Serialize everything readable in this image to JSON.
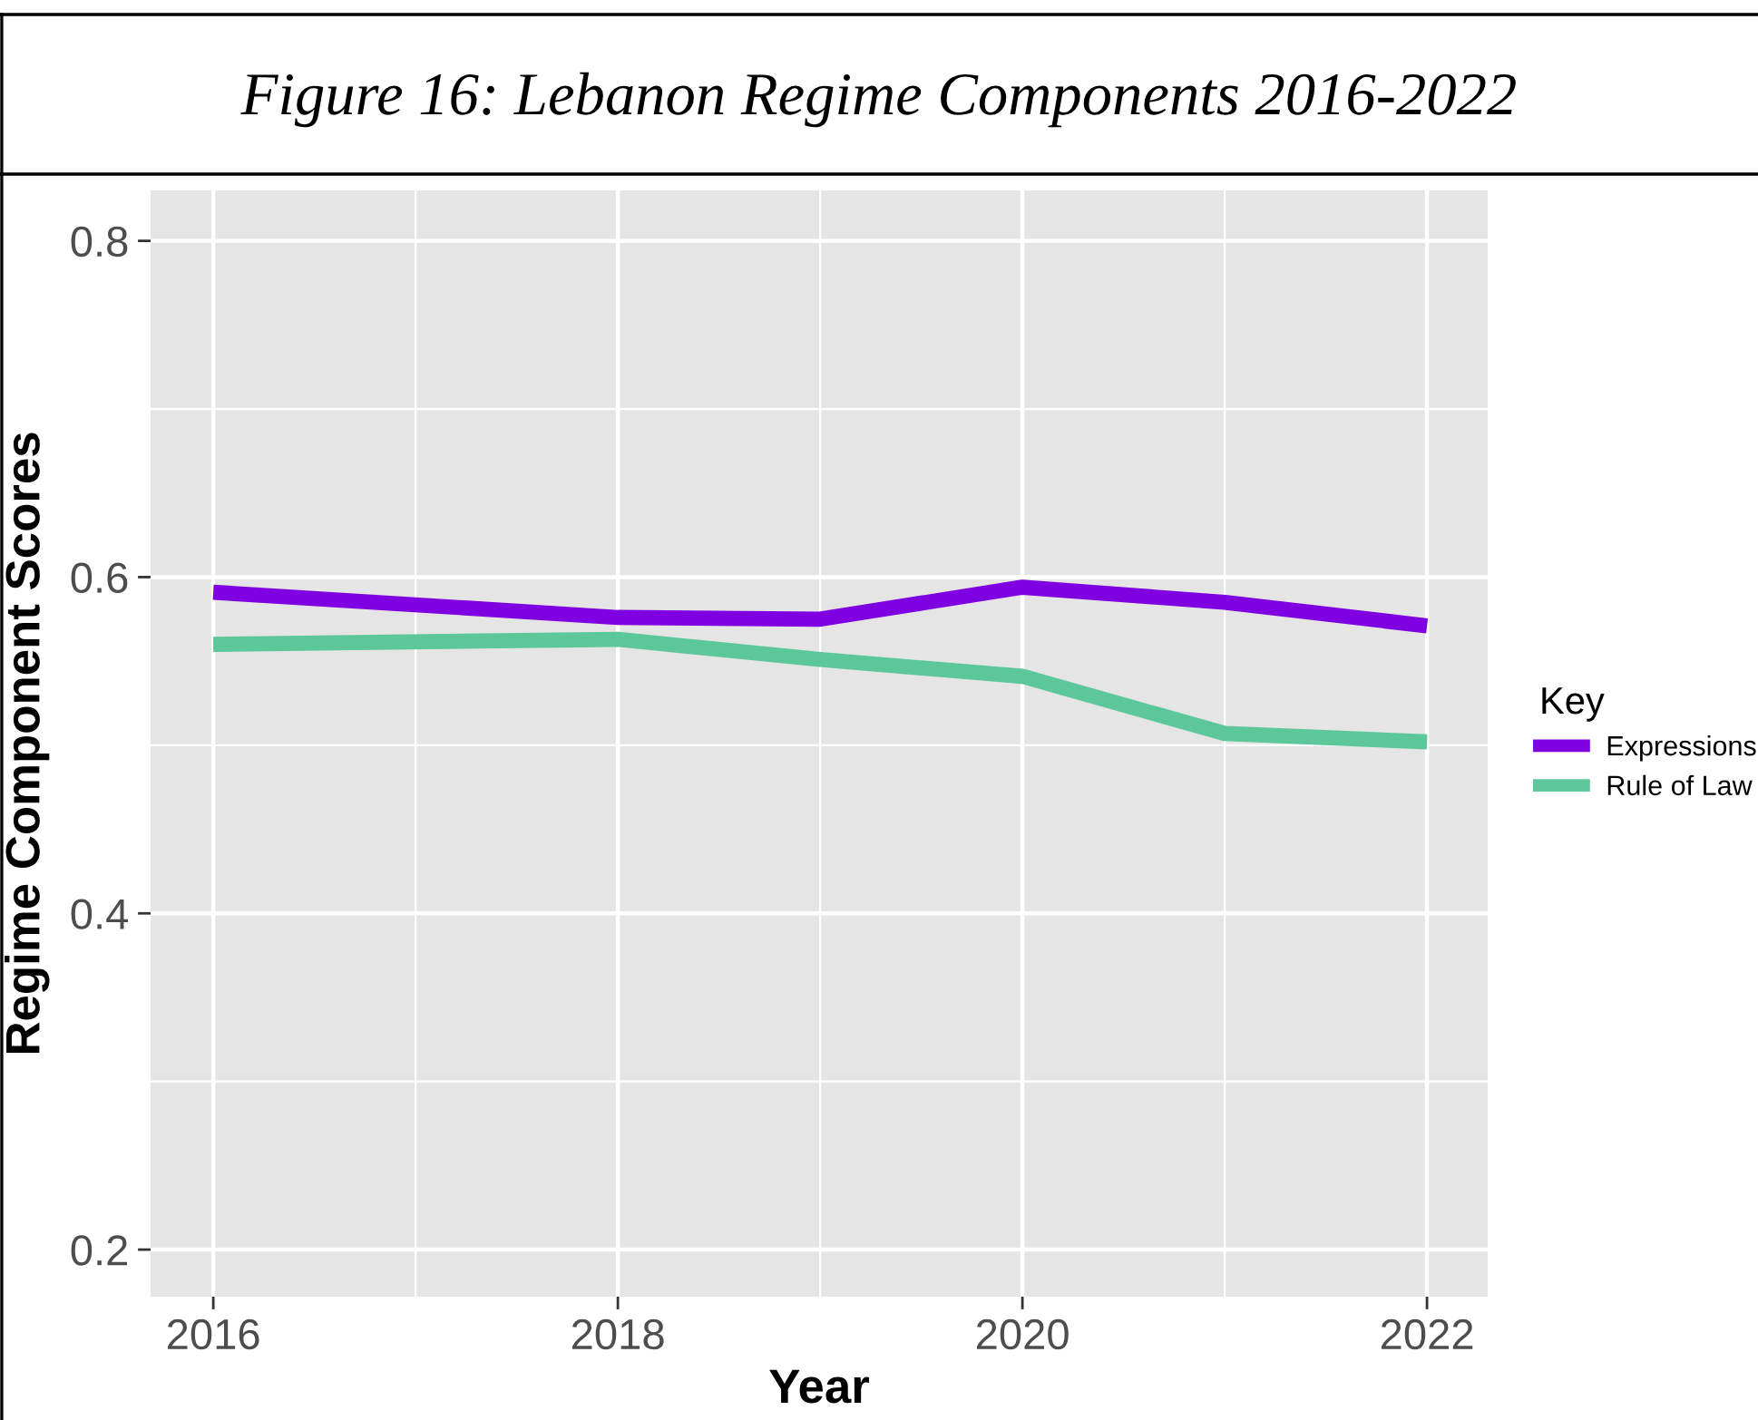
{
  "chart_data": {
    "type": "line",
    "title": "Figure 16: Lebanon Regime Components 2016-2022",
    "xlabel": "Year",
    "ylabel": "Regime Component Scores",
    "legend_title": "Key",
    "x": [
      2016,
      2018,
      2019,
      2020,
      2021,
      2022
    ],
    "series": [
      {
        "name": "Expressions",
        "color": "#7f00e0",
        "values": [
          0.591,
          0.576,
          0.575,
          0.594,
          0.585,
          0.571
        ]
      },
      {
        "name": "Rule of Law",
        "color": "#5cc89a",
        "values": [
          0.56,
          0.563,
          0.551,
          0.541,
          0.507,
          0.502
        ]
      }
    ],
    "xlim": [
      2015.69,
      2022.3
    ],
    "xticks": [
      2016,
      2018,
      2020,
      2022
    ],
    "ylim": [
      0.172,
      0.83
    ],
    "yticks": [
      0.2,
      0.4,
      0.6,
      0.8
    ],
    "grid": true,
    "legend": "right",
    "line_style": "solid",
    "marker": "none"
  }
}
